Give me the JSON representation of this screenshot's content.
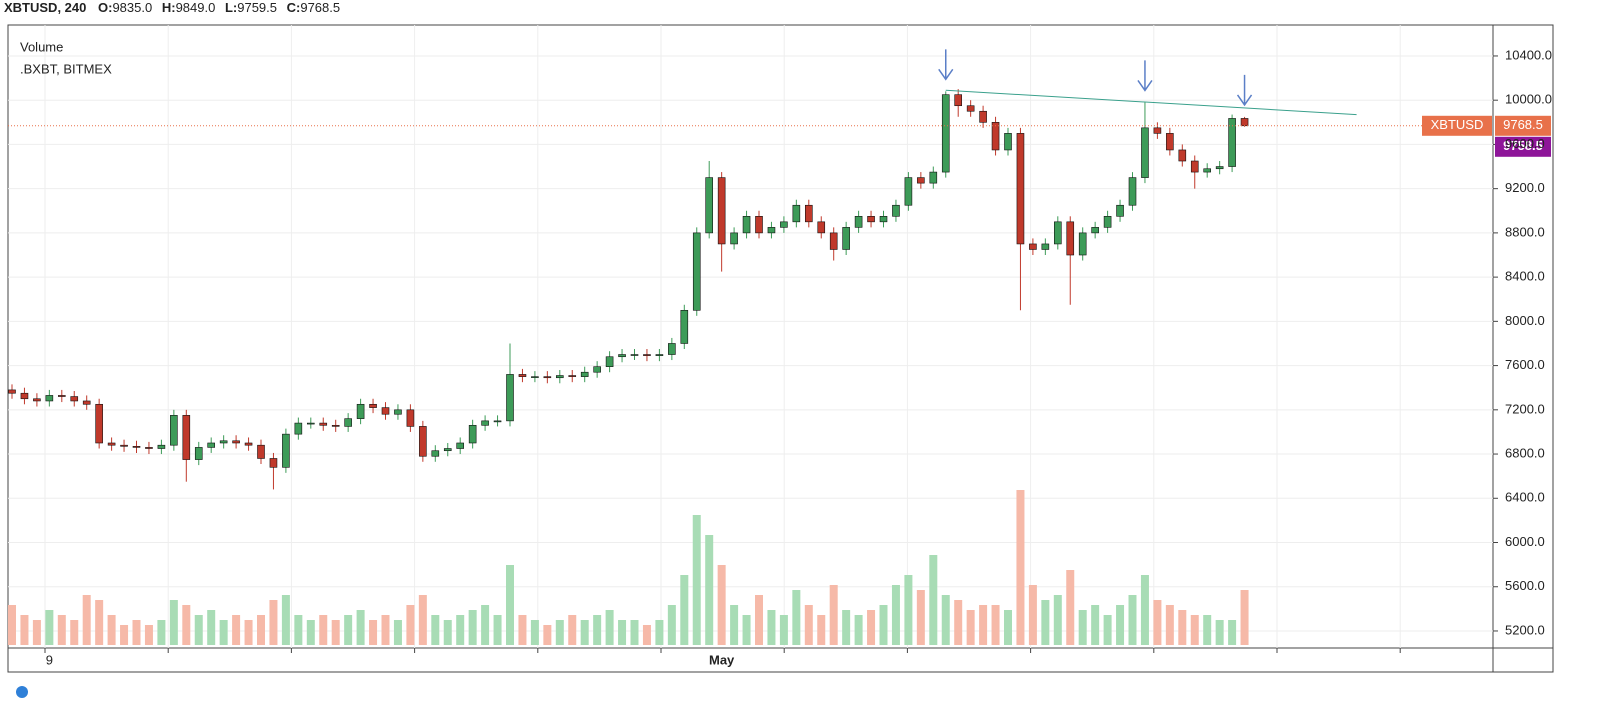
{
  "header": {
    "symbol": "XBTUSD, 240",
    "fields": [
      {
        "key": "O:",
        "value": "9835.0"
      },
      {
        "key": "H:",
        "value": "9849.0"
      },
      {
        "key": "L:",
        "value": "9759.5"
      },
      {
        "key": "C:",
        "value": "9768.5"
      }
    ]
  },
  "chart_data": {
    "type": "candlestick",
    "legend": [
      "Volume",
      ".BXBT, BITMEX"
    ],
    "categories": [
      null,
      null,
      null,
      "9",
      null,
      null,
      null,
      null,
      null,
      null,
      null,
      null,
      null,
      null,
      null,
      null,
      null,
      null,
      null,
      null,
      null,
      null,
      null,
      null,
      null,
      null,
      null,
      null,
      null,
      null,
      null,
      null,
      null,
      null,
      null,
      null,
      null,
      null,
      null,
      null,
      null,
      null,
      null,
      null,
      null,
      null,
      null,
      null,
      null,
      null,
      null,
      null,
      null,
      null,
      null,
      null,
      null,
      "May",
      null,
      null,
      null,
      null,
      null,
      null,
      null,
      null,
      null,
      null,
      null,
      null,
      null,
      null,
      null,
      null,
      null,
      null,
      null,
      null,
      null,
      null,
      null,
      null,
      null,
      null,
      null,
      null,
      null,
      null,
      null,
      null,
      null,
      null,
      null,
      null,
      null,
      null,
      null,
      null,
      null,
      null
    ],
    "open": [
      7380,
      7350,
      7300,
      7280,
      7330,
      7320,
      7280,
      7250,
      6900,
      6880,
      6870,
      6860,
      6850,
      6880,
      7150,
      6750,
      6860,
      6900,
      6920,
      6900,
      6880,
      6760,
      6680,
      6980,
      7080,
      7080,
      7060,
      7050,
      7120,
      7250,
      7220,
      7160,
      7200,
      7050,
      6780,
      6830,
      6850,
      6900,
      7060,
      7100,
      7100,
      7520,
      7500,
      7500,
      7490,
      7510,
      7500,
      7540,
      7590,
      7680,
      7700,
      7700,
      7690,
      7700,
      7800,
      8100,
      8800,
      9300,
      8700,
      8800,
      8950,
      8800,
      8850,
      8900,
      9050,
      8900,
      8800,
      8650,
      8850,
      8950,
      8900,
      8950,
      9050,
      9300,
      9250,
      9350,
      10050,
      9950,
      9900,
      9800,
      9550,
      9700,
      8700,
      8650,
      8700,
      8900,
      8600,
      8800,
      8850,
      8950,
      9050,
      9300,
      9750,
      9700,
      9550,
      9450,
      9350,
      9380,
      9400,
      9835
    ],
    "high": [
      7430,
      7400,
      7350,
      7380,
      7380,
      7370,
      7330,
      7300,
      6950,
      6930,
      6920,
      6910,
      6930,
      7200,
      7200,
      6910,
      6950,
      6970,
      6970,
      6950,
      6930,
      6810,
      7030,
      7130,
      7130,
      7130,
      7110,
      7170,
      7300,
      7300,
      7270,
      7250,
      7250,
      7100,
      6880,
      6900,
      6950,
      7110,
      7150,
      7150,
      7800,
      7570,
      7550,
      7550,
      7560,
      7560,
      7590,
      7640,
      7730,
      7750,
      7750,
      7750,
      7750,
      7850,
      8150,
      8850,
      9450,
      9350,
      8850,
      9000,
      9000,
      8900,
      8950,
      9100,
      9100,
      8950,
      8850,
      8900,
      9000,
      9000,
      9000,
      9100,
      9350,
      9350,
      9400,
      10080,
      10100,
      10000,
      9950,
      9850,
      9750,
      9750,
      8750,
      8750,
      8950,
      8950,
      8850,
      8900,
      9000,
      9100,
      9350,
      9980,
      9800,
      9750,
      9600,
      9500,
      9430,
      9450,
      9870,
      9849
    ],
    "low": [
      7300,
      7250,
      7230,
      7230,
      7270,
      7230,
      7200,
      6850,
      6830,
      6820,
      6810,
      6800,
      6800,
      6830,
      6550,
      6700,
      6810,
      6850,
      6850,
      6830,
      6710,
      6480,
      6630,
      6930,
      7030,
      7010,
      7000,
      7000,
      7070,
      7170,
      7110,
      7110,
      7000,
      6730,
      6730,
      6780,
      6800,
      6850,
      7010,
      7050,
      7050,
      7450,
      7450,
      7440,
      7440,
      7450,
      7450,
      7490,
      7540,
      7630,
      7650,
      7640,
      7640,
      7650,
      7750,
      8050,
      8750,
      8450,
      8650,
      8750,
      8750,
      8750,
      8800,
      8850,
      8850,
      8750,
      8550,
      8600,
      8800,
      8850,
      8850,
      8900,
      9000,
      9200,
      9200,
      9300,
      9850,
      9850,
      9750,
      9500,
      9500,
      8100,
      8600,
      8600,
      8650,
      8150,
      8550,
      8750,
      8800,
      8900,
      9000,
      9250,
      9650,
      9500,
      9400,
      9200,
      9300,
      9330,
      9350,
      9759.5
    ],
    "close": [
      7350,
      7300,
      7280,
      7330,
      7320,
      7280,
      7250,
      6900,
      6880,
      6870,
      6860,
      6850,
      6880,
      7150,
      6750,
      6860,
      6900,
      6920,
      6900,
      6880,
      6760,
      6680,
      6980,
      7080,
      7080,
      7060,
      7050,
      7120,
      7250,
      7220,
      7160,
      7200,
      7050,
      6780,
      6830,
      6850,
      6900,
      7060,
      7100,
      7100,
      7520,
      7500,
      7500,
      7490,
      7510,
      7500,
      7540,
      7590,
      7680,
      7700,
      7700,
      7690,
      7700,
      7800,
      8100,
      8800,
      9300,
      8700,
      8800,
      8950,
      8800,
      8850,
      8900,
      9050,
      8900,
      8800,
      8650,
      8850,
      8950,
      8900,
      8950,
      9050,
      9300,
      9250,
      9350,
      10050,
      9950,
      9900,
      9800,
      9550,
      9700,
      8700,
      8650,
      8700,
      8900,
      8600,
      8800,
      8850,
      8950,
      9050,
      9300,
      9750,
      9700,
      9550,
      9450,
      9350,
      9380,
      9400,
      9835,
      9768.5
    ],
    "volume": [
      40,
      30,
      25,
      35,
      30,
      25,
      50,
      45,
      30,
      20,
      25,
      20,
      25,
      45,
      40,
      30,
      35,
      25,
      30,
      25,
      30,
      45,
      50,
      30,
      25,
      30,
      25,
      30,
      35,
      25,
      30,
      25,
      40,
      50,
      30,
      25,
      30,
      35,
      40,
      30,
      80,
      30,
      25,
      20,
      25,
      30,
      25,
      30,
      35,
      25,
      25,
      20,
      25,
      40,
      70,
      130,
      110,
      80,
      40,
      30,
      50,
      35,
      30,
      55,
      40,
      30,
      60,
      35,
      30,
      35,
      40,
      60,
      70,
      55,
      90,
      50,
      45,
      35,
      40,
      40,
      35,
      155,
      60,
      45,
      50,
      75,
      35,
      40,
      30,
      40,
      50,
      70,
      45,
      40,
      35,
      30,
      30,
      25,
      25,
      55
    ],
    "up_color": "#3d9b58",
    "down_color": "#c0392b",
    "up_volume_color": "#a8dcb5",
    "down_volume_color": "#f6b9a8",
    "ylim": [
      5046,
      10680
    ],
    "yticks": [
      {
        "value": 5200,
        "label": "5200.0"
      },
      {
        "value": 5600,
        "label": "5600.0"
      },
      {
        "value": 6000,
        "label": "6000.0"
      },
      {
        "value": 6400,
        "label": "6400.0"
      },
      {
        "value": 6800,
        "label": "6800.0"
      },
      {
        "value": 7200,
        "label": "7200.0"
      },
      {
        "value": 7600,
        "label": "7600.0"
      },
      {
        "value": 8000,
        "label": "8000.0"
      },
      {
        "value": 8400,
        "label": "8400.0"
      },
      {
        "value": 8800,
        "label": "8800.0"
      },
      {
        "value": 9200,
        "label": "9200.0"
      },
      {
        "value": 9600,
        "label": "9600.0"
      },
      {
        "value": 10000,
        "label": "10000.0"
      },
      {
        "value": 10400,
        "label": "10400.0"
      }
    ],
    "grid": true,
    "price_tag_label": "XBTUSD",
    "price_tag_color": "#e8714a",
    "index_price": 9758.5,
    "index_color": "#8e1599",
    "trendline": {
      "x": [
        75,
        108
      ],
      "y": [
        10090,
        9870
      ],
      "color": "#3aa08c"
    },
    "arrows": [
      75,
      91,
      99
    ],
    "arrow_color": "#5b7fc7"
  }
}
